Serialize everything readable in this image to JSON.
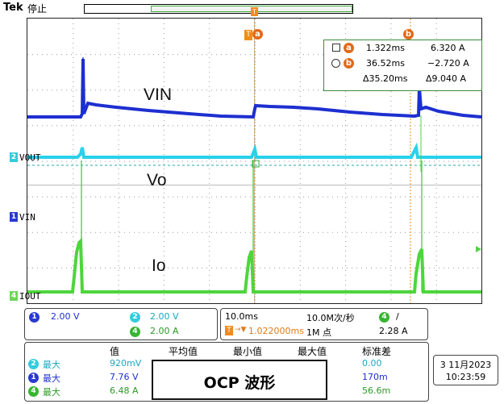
{
  "header": {
    "brand": "Tek",
    "run_state": "停止"
  },
  "waveform_labels": {
    "vin": "VIN",
    "vo": "Vo",
    "io": "Io"
  },
  "channel_markers": [
    {
      "num": "2",
      "label": "VOUT",
      "color": "#33ccdd"
    },
    {
      "num": "1",
      "label": "VIN",
      "color": "#2a3ad0"
    },
    {
      "num": "4",
      "label": "IOUT",
      "color": "#6ed65a"
    }
  ],
  "cursor_readout": {
    "a_time": "1.322ms",
    "a_value": "6.320 A",
    "b_time": "36.52ms",
    "b_value": "−2.720 A",
    "delta_time": "Δ35.20ms",
    "delta_value": "Δ9.040 A",
    "a_badge": "a",
    "b_badge": "b"
  },
  "channel_settings": {
    "ch1_num": "1",
    "ch1_scale": "2.00 V",
    "ch2_num": "2",
    "ch2_scale": "2.00 V",
    "ch4_num": "4",
    "ch4_scale": "2.00 A"
  },
  "timebase": {
    "scale": "10.0ms",
    "sample_rate": "10.0M次/秒",
    "trigger_ch": "4",
    "trigger_slope": "/",
    "trigger_pos": "1.022000ms",
    "record_length": "1M 点",
    "trigger_level": "2.28 A"
  },
  "measurements": {
    "headers": [
      "值",
      "平均值",
      "最小值",
      "最大值",
      "标准差"
    ],
    "rows": [
      {
        "ch": "2",
        "type": "最大",
        "value": "920mV",
        "std": "0.00",
        "color": "#33ccdd"
      },
      {
        "ch": "1",
        "type": "最大",
        "value": "7.76 V",
        "std": "170m",
        "color": "#2a3ad0"
      },
      {
        "ch": "4",
        "type": "最大",
        "value": "6.48 A",
        "std": "56.6m",
        "color": "#37b530"
      }
    ]
  },
  "datetime": {
    "date": "3 11月2023",
    "time": "10:23:59"
  },
  "annotation": {
    "title": "OCP 波形"
  }
}
